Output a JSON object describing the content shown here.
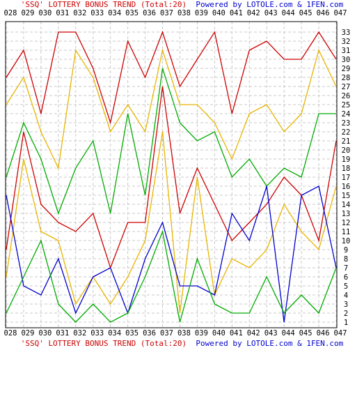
{
  "title": {
    "part1": "'SSQ' LOTTERY BONUS TREND (Total:20)",
    "part2": "Powered by LOTOLE.com & 1FEN.com"
  },
  "chart_data": {
    "type": "line",
    "title": "'SSQ' LOTTERY BONUS TREND (Total:20)",
    "subtitle": "Powered by LOTOLE.com & 1FEN.com",
    "xlabel": "",
    "ylabel": "",
    "grid": true,
    "ylim": [
      1,
      33
    ],
    "x": [
      "028",
      "029",
      "030",
      "031",
      "032",
      "033",
      "034",
      "035",
      "036",
      "037",
      "038",
      "039",
      "040",
      "041",
      "042",
      "043",
      "044",
      "045",
      "046",
      "047"
    ],
    "y_ticks": [
      1,
      2,
      3,
      4,
      5,
      6,
      7,
      8,
      9,
      10,
      11,
      12,
      13,
      14,
      15,
      16,
      17,
      18,
      19,
      20,
      21,
      22,
      23,
      24,
      25,
      26,
      27,
      28,
      29,
      30,
      31,
      32,
      33
    ],
    "series": [
      {
        "color": "#cc0000",
        "values": [
          28,
          31,
          24,
          33,
          33,
          29,
          23,
          32,
          28,
          33,
          27,
          30,
          33,
          24,
          31,
          32,
          30,
          30,
          33,
          30
        ]
      },
      {
        "color": "#e8b400",
        "values": [
          25,
          28,
          22,
          18,
          31,
          28,
          22,
          25,
          22,
          31,
          25,
          25,
          23,
          19,
          24,
          25,
          22,
          24,
          31,
          27
        ]
      },
      {
        "color": "#00aa00",
        "values": [
          17,
          23,
          19,
          13,
          18,
          21,
          13,
          24,
          15,
          29,
          23,
          21,
          22,
          17,
          19,
          16,
          18,
          17,
          24,
          24
        ]
      },
      {
        "color": "#cc0000",
        "values": [
          9,
          22,
          14,
          12,
          11,
          13,
          7,
          12,
          12,
          27,
          13,
          18,
          14,
          10,
          12,
          14,
          17,
          15,
          10,
          21
        ]
      },
      {
        "color": "#e8b400",
        "values": [
          6,
          19,
          11,
          10,
          3,
          6,
          3,
          6,
          10,
          22,
          2,
          17,
          4,
          8,
          7,
          9,
          14,
          11,
          9,
          16
        ]
      },
      {
        "color": "#0000cc",
        "values": [
          15,
          5,
          4,
          8,
          2,
          6,
          7,
          2,
          8,
          12,
          5,
          5,
          4,
          13,
          10,
          16,
          1,
          15,
          16,
          7
        ]
      },
      {
        "color": "#00aa00",
        "values": [
          2,
          6,
          10,
          3,
          1,
          3,
          1,
          2,
          6,
          11,
          1,
          8,
          3,
          2,
          2,
          6,
          2,
          4,
          2,
          7
        ]
      }
    ]
  }
}
